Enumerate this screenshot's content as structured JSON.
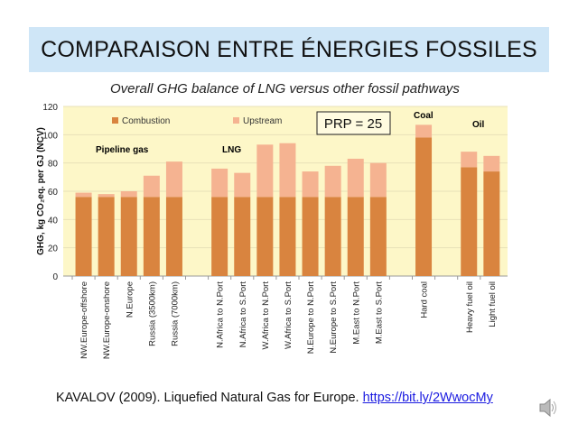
{
  "slide": {
    "title": "COMPARAISON ENTRE ÉNERGIES FOSSILES",
    "footer_text": "KAVALOV (2009). Liquefied Natural Gas for Europe. ",
    "footer_link": "https://bit.ly/2WwocMy",
    "speaker_icon": "speaker-icon"
  },
  "chart_data": {
    "type": "bar",
    "stacked": true,
    "title": "Overall GHG balance of LNG versus other fossil pathways",
    "ylabel": "GHG, kg CO₂eq. per GJ (NCV)",
    "xlabel": "",
    "ylim": [
      0,
      120
    ],
    "yticks": [
      0,
      20,
      40,
      60,
      80,
      100,
      120
    ],
    "grid": true,
    "legend_position": "top-left",
    "background": "#fdf7c8",
    "annotation": "PRP = 25",
    "groups": [
      {
        "label": "Pipeline gas",
        "members": [
          "NW.Europe-offshore",
          "NW.Europe-onshore",
          "N.Europe",
          "Russia (3500km)",
          "Russia (7000km)"
        ]
      },
      {
        "label": "LNG",
        "members": [
          "N.Africa to N.Port",
          "N.Africa to S.Port",
          "W.Africa to N.Port",
          "W.Africa to S.Port",
          "N.Europe to N.Port",
          "N.Europe to S.Port",
          "M.East to N.Port",
          "M.East to S.Port"
        ]
      },
      {
        "label": "Coal",
        "members": [
          "Hard coal"
        ]
      },
      {
        "label": "Oil",
        "members": [
          "Heavy fuel oil",
          "Light fuel oil"
        ]
      }
    ],
    "categories": [
      "NW.Europe-offshore",
      "NW.Europe-onshore",
      "N.Europe",
      "Russia (3500km)",
      "Russia (7000km)",
      "",
      "N.Africa to N.Port",
      "N.Africa to S.Port",
      "W.Africa to N.Port",
      "W.Africa to S.Port",
      "N.Europe to N.Port",
      "N.Europe to S.Port",
      "M.East to N.Port",
      "M.East to S.Port",
      "",
      "Hard coal",
      "",
      "Heavy fuel oil",
      "Light fuel oil"
    ],
    "series": [
      {
        "name": "Combustion",
        "color": "#d9843f",
        "values": [
          56,
          56,
          56,
          56,
          56,
          null,
          56,
          56,
          56,
          56,
          56,
          56,
          56,
          56,
          null,
          98,
          null,
          77,
          74
        ]
      },
      {
        "name": "Upstream",
        "color": "#f5b391",
        "values": [
          3,
          2,
          4,
          15,
          25,
          null,
          20,
          17,
          37,
          38,
          18,
          22,
          27,
          24,
          null,
          9,
          null,
          11,
          11
        ]
      }
    ]
  }
}
